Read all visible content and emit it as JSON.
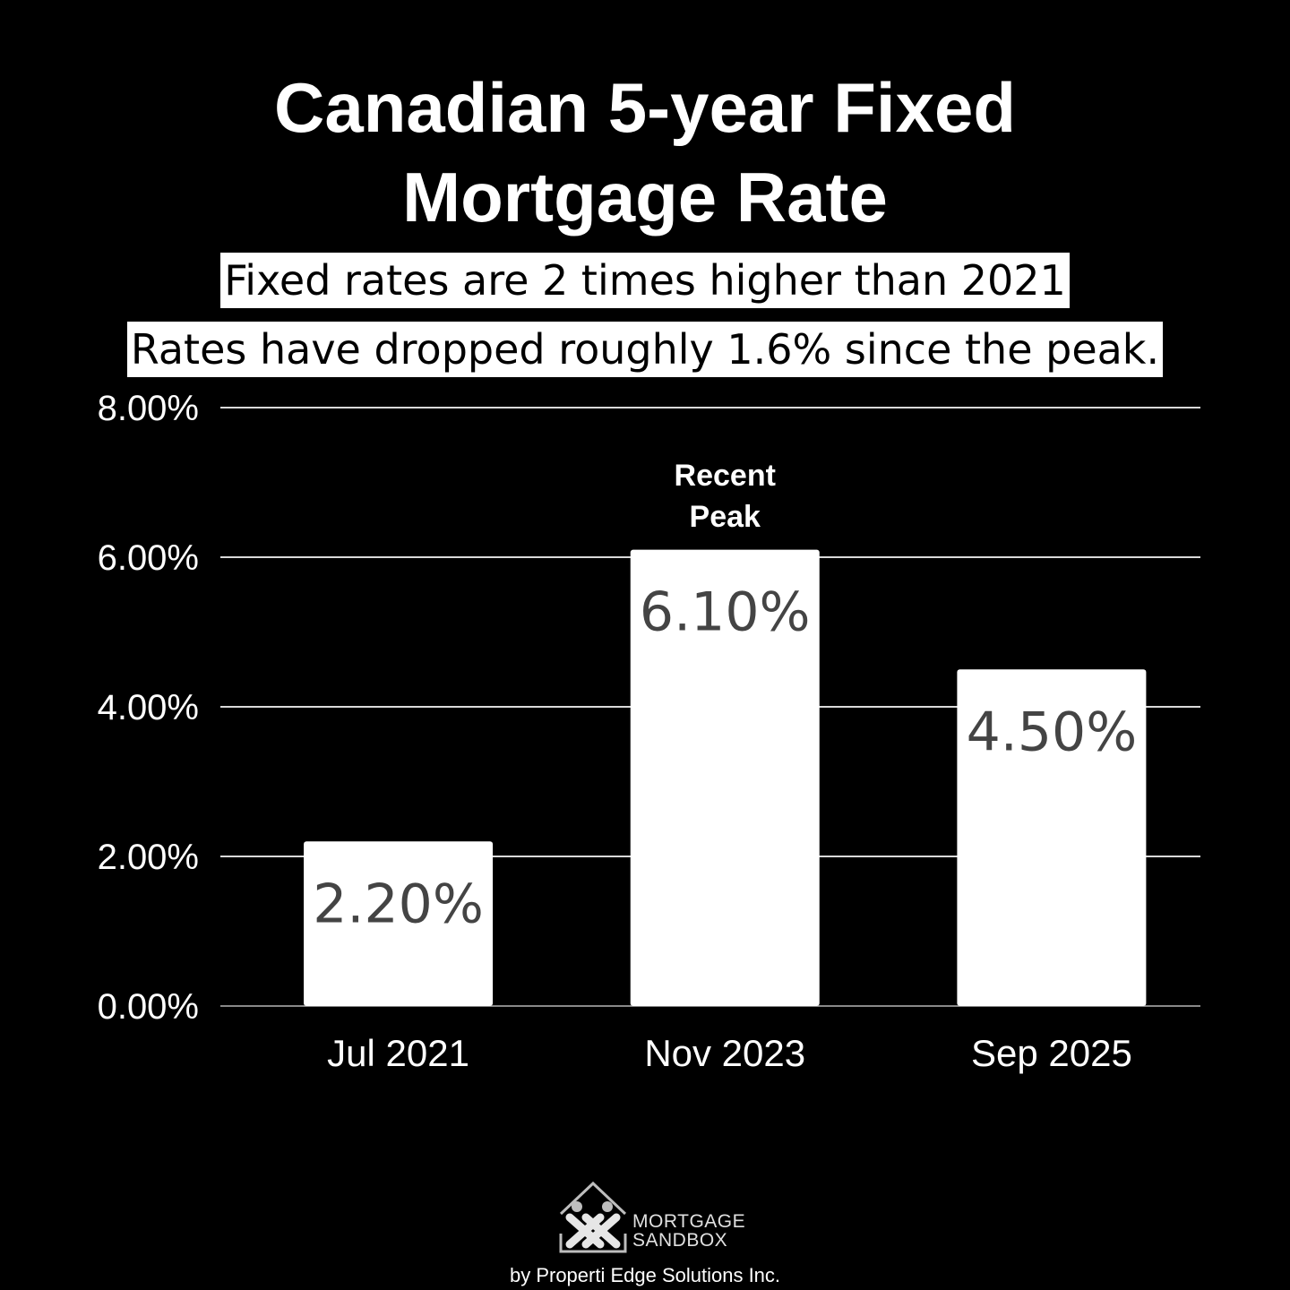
{
  "title_line1": "Canadian 5-year Fixed",
  "title_line2": "Mortgage Rate",
  "subtitle1": "Fixed rates are 2 times higher than 2021",
  "subtitle2": "Rates have dropped roughly 1.6% since the peak.",
  "chart_data": {
    "type": "bar",
    "categories": [
      "Jul 2021",
      "Nov 2023",
      "Sep 2025"
    ],
    "values": [
      2.2,
      6.1,
      4.5
    ],
    "data_labels": [
      "2.20%",
      "6.10%",
      "4.50%"
    ],
    "ylim": [
      0,
      8
    ],
    "yticks": [
      "0.00%",
      "2.00%",
      "4.00%",
      "6.00%",
      "8.00%"
    ],
    "annotation": {
      "category": "Nov 2023",
      "lines": [
        "Recent",
        "Peak"
      ]
    },
    "grid": true,
    "colors": {
      "bar": "#ffffff",
      "label": "#444444",
      "grid": "#d9d9d9",
      "background": "#000000"
    }
  },
  "logo": {
    "line1": "MORTGAGE",
    "line2": "SANDBOX"
  },
  "credit": "by Properti Edge Solutions Inc."
}
